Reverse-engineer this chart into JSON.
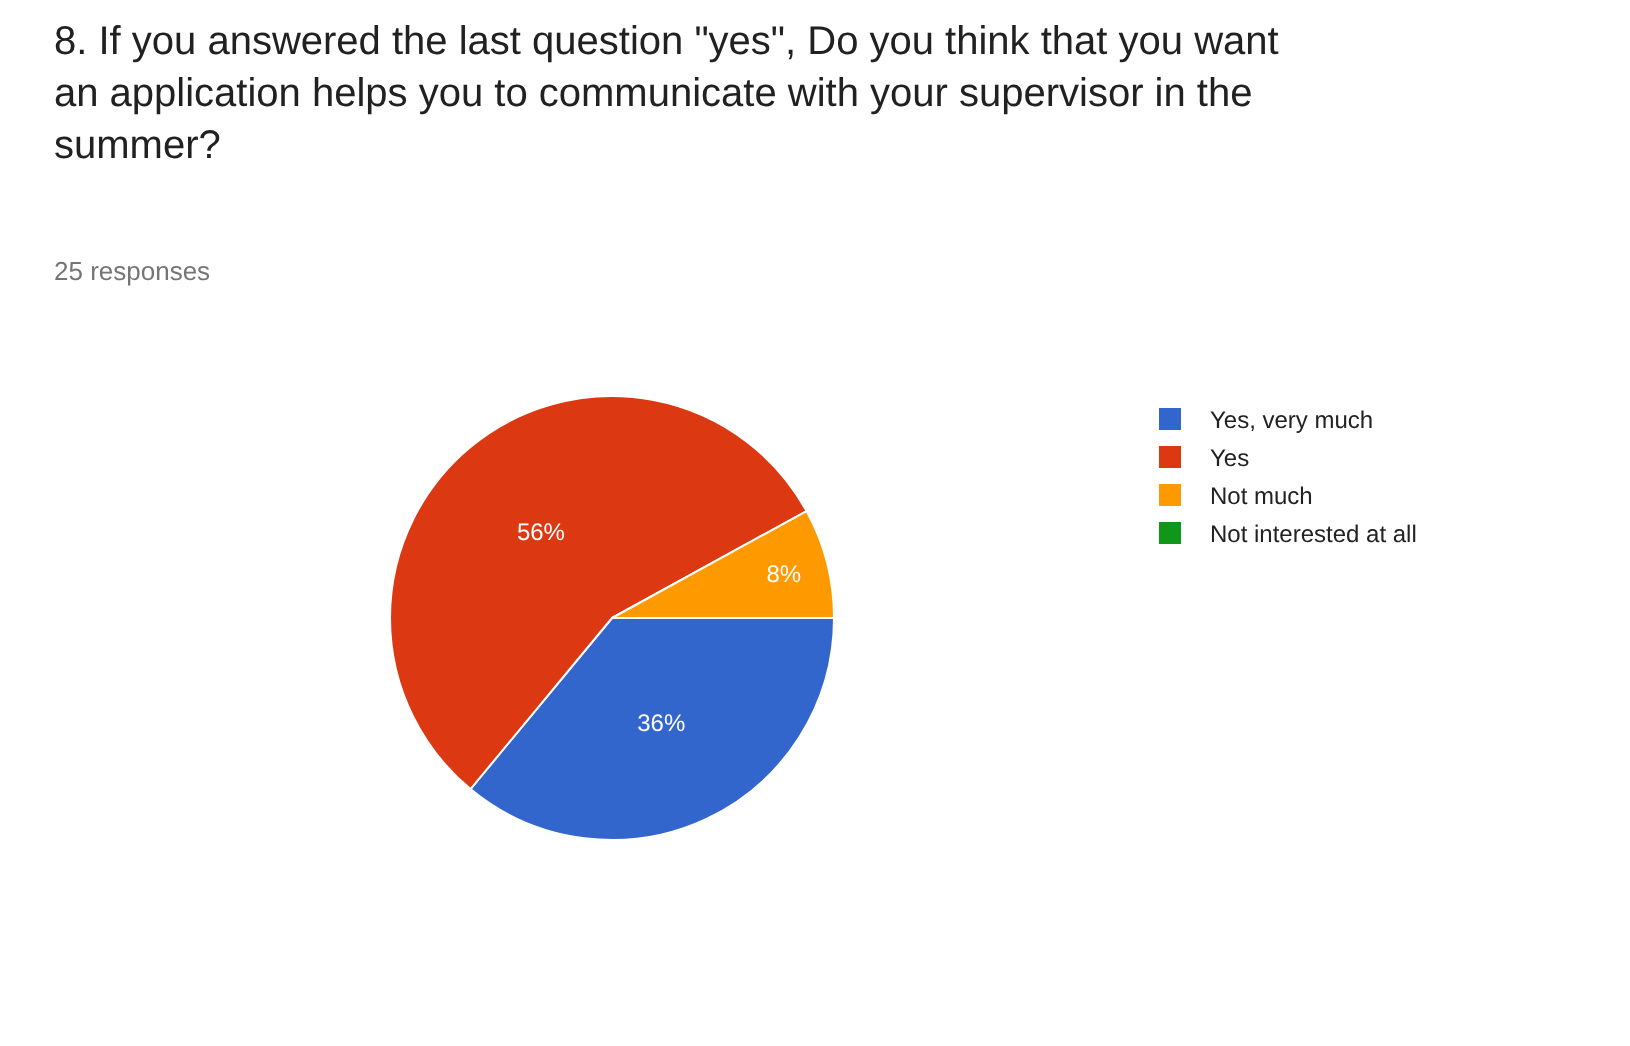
{
  "chart_data": {
    "type": "pie",
    "title": "8. If you answered the last question \"yes\", Do you think that you want an application helps you to communicate with your supervisor in the summer?",
    "subtitle": "25 responses",
    "categories": [
      "Yes, very much",
      "Yes",
      "Not much",
      "Not interested at all"
    ],
    "values": [
      36,
      56,
      8,
      0
    ],
    "colors": [
      "#3366cc",
      "#dc3912",
      "#ff9900",
      "#109618"
    ],
    "value_labels": [
      "36%",
      "56%",
      "8%",
      null
    ],
    "legend": "top right"
  }
}
